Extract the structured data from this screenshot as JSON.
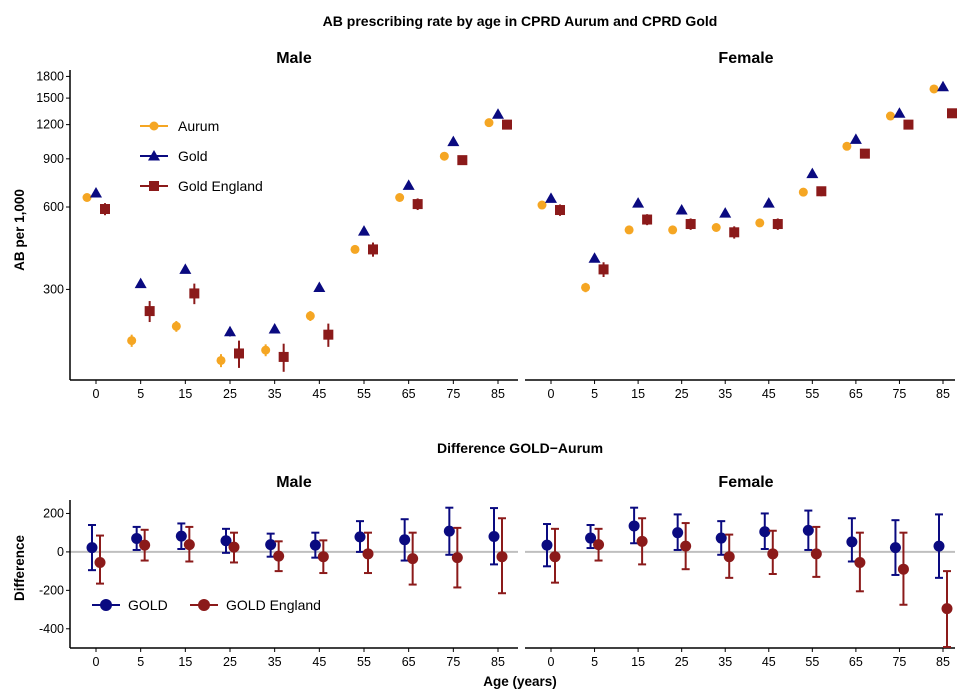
{
  "figure": {
    "title": "AB prescribing rate by age in CPRD Aurum and CPRD Gold",
    "bottom_title": "Difference GOLD−Aurum",
    "xlabel": "Age (years)"
  },
  "colors": {
    "aurum": "#F5A623",
    "gold": "#0A0A80",
    "gold_england": "#8B1A1A",
    "zero_line": "#BFBFBF",
    "axis": "#000000"
  },
  "chart_data": [
    {
      "type": "scatter",
      "panel": "top-left",
      "title": "Male",
      "ylabel": "AB per 1,000",
      "yscale": "log",
      "ylim": [
        140,
        1900
      ],
      "yticks": [
        300,
        600,
        900,
        1200,
        1500,
        1800
      ],
      "categories": [
        "0",
        "5",
        "15",
        "25",
        "35",
        "45",
        "55",
        "65",
        "75",
        "85"
      ],
      "legend_position": "top-left",
      "series": [
        {
          "name": "Aurum",
          "marker": "circle",
          "color": "#F5A623",
          "values": [
            650,
            195,
            220,
            165,
            180,
            240,
            420,
            650,
            920,
            1220
          ],
          "errors": [
            12,
            10,
            10,
            9,
            9,
            10,
            14,
            18,
            22,
            28
          ]
        },
        {
          "name": "Gold",
          "marker": "triangle",
          "color": "#0A0A80",
          "values": [
            675,
            315,
            355,
            210,
            215,
            305,
            490,
            720,
            1040,
            1310
          ],
          "errors": [
            10,
            10,
            10,
            8,
            8,
            8,
            12,
            15,
            18,
            20
          ]
        },
        {
          "name": "Gold England",
          "marker": "square",
          "color": "#8B1A1A",
          "values": [
            590,
            250,
            290,
            175,
            170,
            205,
            420,
            615,
            890,
            1200
          ],
          "errors": [
            30,
            22,
            25,
            20,
            20,
            20,
            25,
            30,
            35,
            40
          ]
        }
      ]
    },
    {
      "type": "scatter",
      "panel": "top-right",
      "title": "Female",
      "yscale": "log",
      "ylim": [
        140,
        1900
      ],
      "categories": [
        "0",
        "5",
        "15",
        "25",
        "35",
        "45",
        "55",
        "65",
        "75",
        "85"
      ],
      "series": [
        {
          "name": "Aurum",
          "marker": "circle",
          "color": "#F5A623",
          "values": [
            610,
            305,
            495,
            495,
            505,
            525,
            680,
            1000,
            1290,
            1620
          ],
          "errors": [
            12,
            12,
            12,
            12,
            12,
            12,
            15,
            18,
            22,
            28
          ]
        },
        {
          "name": "Gold",
          "marker": "triangle",
          "color": "#0A0A80",
          "values": [
            645,
            390,
            620,
            585,
            570,
            620,
            795,
            1060,
            1320,
            1650
          ],
          "errors": [
            10,
            10,
            10,
            10,
            10,
            10,
            12,
            15,
            18,
            20
          ]
        },
        {
          "name": "Gold England",
          "marker": "square",
          "color": "#8B1A1A",
          "values": [
            585,
            355,
            540,
            520,
            485,
            520,
            685,
            940,
            1200,
            1320
          ],
          "errors": [
            28,
            22,
            25,
            25,
            25,
            25,
            28,
            32,
            38,
            45
          ]
        }
      ]
    },
    {
      "type": "scatter",
      "panel": "bottom-left",
      "title": "Male",
      "ylabel": "Difference",
      "ylim": [
        -500,
        270
      ],
      "yticks": [
        -400,
        -200,
        0,
        200
      ],
      "categories": [
        "0",
        "5",
        "15",
        "25",
        "35",
        "45",
        "55",
        "65",
        "75",
        "85"
      ],
      "legend_position": "bottom-left",
      "series": [
        {
          "name": "GOLD",
          "marker": "circle",
          "color": "#0A0A80",
          "values": [
            22,
            70,
            82,
            58,
            38,
            35,
            78,
            63,
            108,
            80
          ],
          "lower": [
            -95,
            10,
            15,
            -5,
            -25,
            -30,
            0,
            -45,
            -15,
            -65
          ],
          "upper": [
            140,
            130,
            148,
            120,
            95,
            100,
            160,
            170,
            230,
            228
          ]
        },
        {
          "name": "GOLD England",
          "marker": "circle",
          "color": "#8B1A1A",
          "values": [
            -55,
            35,
            38,
            25,
            -22,
            -25,
            -10,
            -35,
            -30,
            -25
          ],
          "lower": [
            -165,
            -45,
            -50,
            -55,
            -100,
            -110,
            -110,
            -170,
            -185,
            -215
          ],
          "upper": [
            85,
            115,
            130,
            100,
            55,
            60,
            100,
            100,
            125,
            175
          ]
        }
      ]
    },
    {
      "type": "scatter",
      "panel": "bottom-right",
      "title": "Female",
      "ylim": [
        -500,
        270
      ],
      "categories": [
        "0",
        "5",
        "15",
        "25",
        "35",
        "45",
        "55",
        "65",
        "75",
        "85"
      ],
      "series": [
        {
          "name": "GOLD",
          "marker": "circle",
          "color": "#0A0A80",
          "values": [
            35,
            72,
            135,
            100,
            72,
            105,
            112,
            52,
            22,
            30
          ],
          "lower": [
            -75,
            20,
            45,
            10,
            -15,
            15,
            10,
            -50,
            -120,
            -135
          ],
          "upper": [
            145,
            140,
            230,
            195,
            160,
            200,
            215,
            175,
            165,
            195
          ]
        },
        {
          "name": "GOLD England",
          "marker": "circle",
          "color": "#8B1A1A",
          "values": [
            -25,
            38,
            55,
            30,
            -25,
            -10,
            -10,
            -55,
            -90,
            -295
          ],
          "lower": [
            -160,
            -45,
            -65,
            -90,
            -135,
            -115,
            -130,
            -205,
            -275,
            -495
          ],
          "upper": [
            120,
            120,
            175,
            150,
            90,
            110,
            130,
            100,
            100,
            -100
          ]
        }
      ]
    }
  ]
}
